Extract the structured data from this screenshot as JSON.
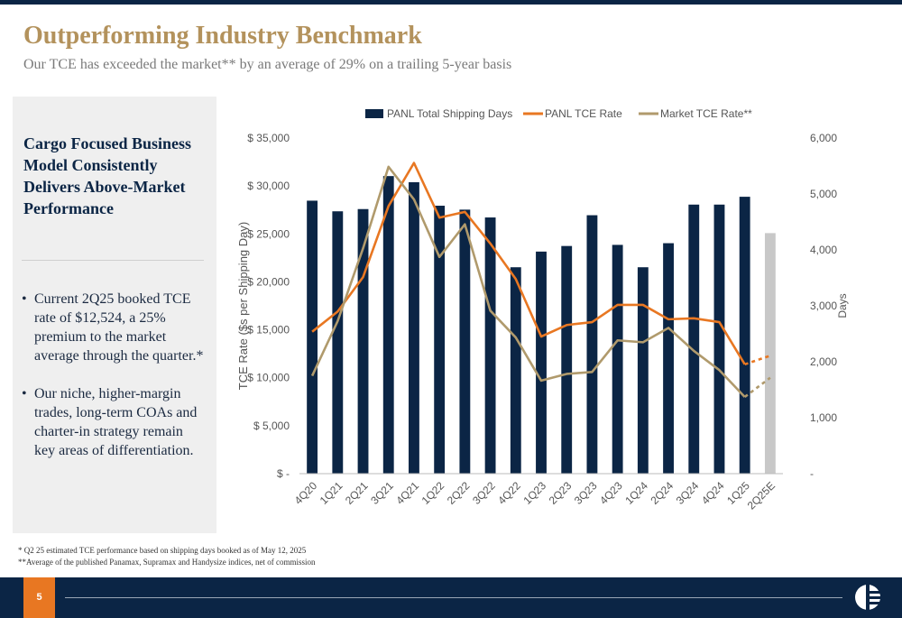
{
  "header": {
    "title": "Outperforming Industry Benchmark",
    "subtitle": "Our TCE has exceeded the market** by an average of 29% on a trailing 5-year basis"
  },
  "panel": {
    "heading": "Cargo Focused Business Model Consistently Delivers Above-Market Performance",
    "bullets": [
      "Current 2Q25 booked TCE rate of $12,524, a 25% premium to the market average through the quarter.*",
      "Our niche, higher-margin trades, long-term COAs and charter-in strategy remain key areas of differentiation."
    ]
  },
  "footnotes": [
    "* Q2 25 estimated TCE performance based on shipping days booked as of May 12, 2025",
    "**Average of the published Panamax, Supramax and Handysize indices, net of commission"
  ],
  "footer": {
    "page_number": "5"
  },
  "colors": {
    "navy": "#0b2545",
    "orange": "#e87722",
    "tan": "#b09a6c",
    "gray_bar": "#c8c8c8",
    "gold": "#b3925c"
  },
  "chart_data": {
    "type": "bar",
    "categories": [
      "4Q20",
      "1Q21",
      "2Q21",
      "3Q21",
      "4Q21",
      "1Q22",
      "2Q22",
      "3Q22",
      "4Q22",
      "1Q23",
      "2Q23",
      "3Q23",
      "4Q23",
      "1Q24",
      "2Q24",
      "3Q24",
      "4Q24",
      "1Q25",
      "2Q25E"
    ],
    "legend_position": "top",
    "series": [
      {
        "name": "PANL Total Shipping Days",
        "kind": "bar",
        "axis": "right",
        "values": [
          4880,
          4690,
          4730,
          5320,
          5210,
          4790,
          4720,
          4580,
          3690,
          3970,
          4070,
          4620,
          4090,
          3690,
          4120,
          4810,
          4810,
          4950,
          4300
        ],
        "estimated_index": 18
      },
      {
        "name": "PANL TCE Rate",
        "kind": "line",
        "axis": "left",
        "values": [
          14800,
          16900,
          20500,
          27900,
          32400,
          26700,
          27300,
          24000,
          20300,
          14300,
          15500,
          15800,
          17600,
          17600,
          16100,
          16200,
          15800,
          11400,
          12300
        ],
        "dashed_from_index": 17
      },
      {
        "name": "Market TCE Rate**",
        "kind": "line",
        "axis": "left",
        "values": [
          10200,
          15900,
          23500,
          32000,
          28600,
          22600,
          26000,
          17000,
          14200,
          9700,
          10400,
          10600,
          13900,
          13700,
          15200,
          12800,
          10800,
          8000,
          10000
        ],
        "dashed_from_index": 17
      }
    ],
    "ylabel": "TCE Rate ($s per Shipping Day)",
    "y2label": "Days",
    "ylim": [
      0,
      35000
    ],
    "y2lim": [
      0,
      6000
    ],
    "yticks": [
      "$ -",
      "$ 5,000",
      "$ 10,000",
      "$ 15,000",
      "$ 20,000",
      "$ 25,000",
      "$ 30,000",
      "$ 35,000"
    ],
    "y2ticks": [
      "-",
      "1,000",
      "2,000",
      "3,000",
      "4,000",
      "5,000",
      "6,000"
    ],
    "grid": false
  }
}
